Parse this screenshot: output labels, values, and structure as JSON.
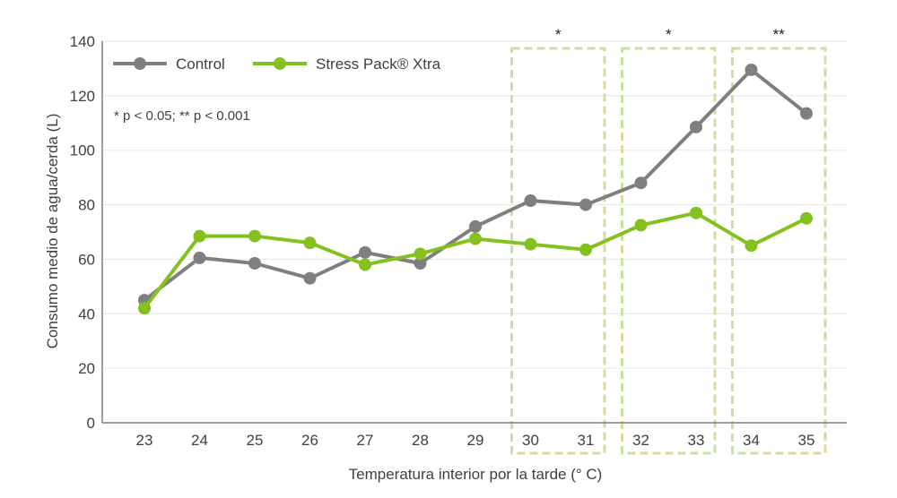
{
  "chart_data": {
    "type": "line",
    "xlabel": "Temperatura interior por la tarde (° C)",
    "ylabel": "Consumo medio de agua/cerda (L)",
    "ylim": [
      0,
      140
    ],
    "yticks": [
      0,
      20,
      40,
      60,
      80,
      100,
      120,
      140
    ],
    "grid": true,
    "legend_position": "top-left",
    "categories": [
      "23",
      "24",
      "25",
      "26",
      "27",
      "28",
      "29",
      "30",
      "31",
      "32",
      "33",
      "34",
      "35"
    ],
    "series": [
      {
        "name": "Control",
        "color": "#7f7f7f",
        "values": [
          45,
          60.5,
          58.5,
          53,
          62.5,
          58.5,
          72,
          81.5,
          80,
          88,
          108.5,
          129.5,
          113.5
        ]
      },
      {
        "name": "Stress Pack® Xtra",
        "color": "#84c11f",
        "values": [
          42,
          68.5,
          68.5,
          66,
          58,
          62,
          67.5,
          65.5,
          63.5,
          72.5,
          77,
          65,
          75
        ]
      }
    ],
    "annotations": [
      {
        "text": "* p < 0.05; ** p < 0.001"
      }
    ],
    "significance_groups": [
      {
        "categories": [
          "30",
          "31"
        ],
        "marker": "*"
      },
      {
        "categories": [
          "32",
          "33"
        ],
        "marker": "*"
      },
      {
        "categories": [
          "34",
          "35"
        ],
        "marker": "**"
      }
    ],
    "box_color": "#c9e2a4",
    "grid_color": "#e6e6e6",
    "axis_color": "#7f7f7f"
  }
}
